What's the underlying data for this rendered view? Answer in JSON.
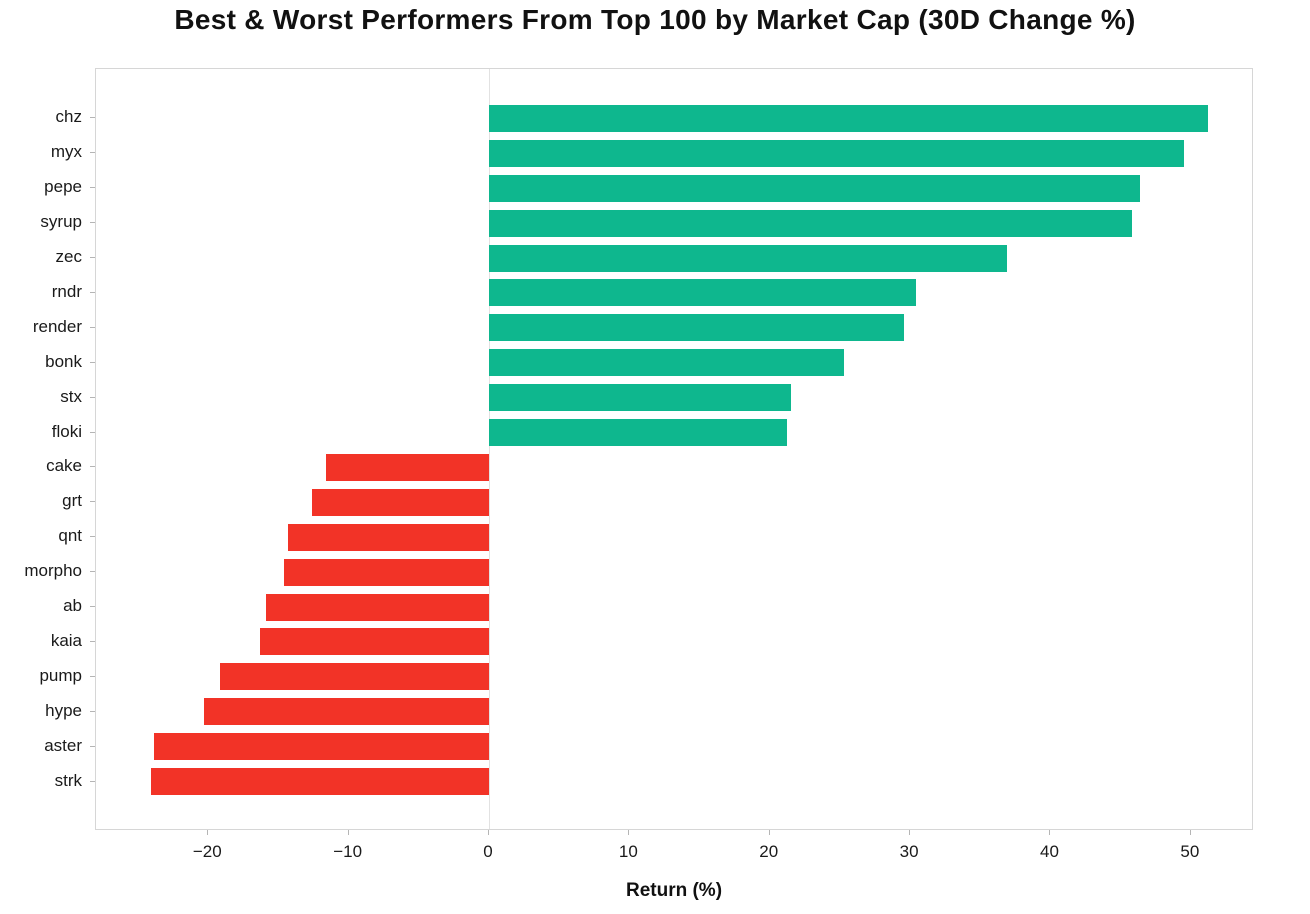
{
  "title": "Best & Worst Performers From Top 100 by Market Cap  (30D Change %)",
  "chart_data": {
    "type": "bar",
    "orientation": "horizontal",
    "title": "Best & Worst Performers From Top 100 by Market Cap  (30D Change %)",
    "xlabel": "Return (%)",
    "ylabel": "",
    "categories": [
      "chz",
      "myx",
      "pepe",
      "syrup",
      "zec",
      "rndr",
      "render",
      "bonk",
      "stx",
      "floki",
      "cake",
      "grt",
      "qnt",
      "morpho",
      "ab",
      "kaia",
      "pump",
      "hype",
      "aster",
      "strk"
    ],
    "values": [
      51.2,
      49.5,
      46.4,
      45.8,
      36.9,
      30.4,
      29.6,
      25.3,
      21.5,
      21.2,
      -11.6,
      -12.6,
      -14.3,
      -14.6,
      -15.9,
      -16.3,
      -19.2,
      -20.3,
      -23.9,
      -24.1
    ],
    "xlim": [
      -28,
      54.5
    ],
    "x_ticks": [
      -20,
      -10,
      0,
      10,
      20,
      30,
      40,
      50
    ],
    "x_tick_labels": [
      "−20",
      "−10",
      "0",
      "10",
      "20",
      "30",
      "40",
      "50"
    ],
    "positive_color": "#0eb78e",
    "negative_color": "#f23327",
    "grid": false,
    "legend": "none"
  }
}
